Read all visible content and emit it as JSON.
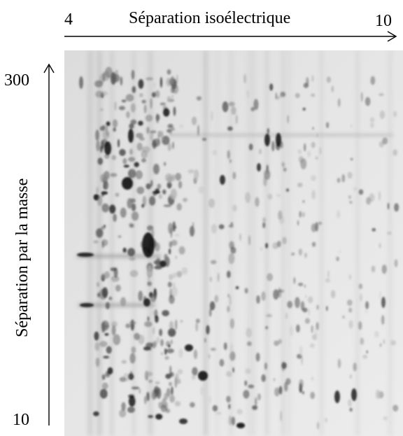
{
  "x_axis": {
    "title": "Séparation isoélectrique",
    "min_label": "4",
    "max_label": "10"
  },
  "y_axis": {
    "title": "Séparation par la masse",
    "max_label": "300",
    "min_label": "10"
  },
  "colors": {
    "ink": "#000000",
    "gel_background": "#e2e2e2",
    "spot": "#111111"
  }
}
